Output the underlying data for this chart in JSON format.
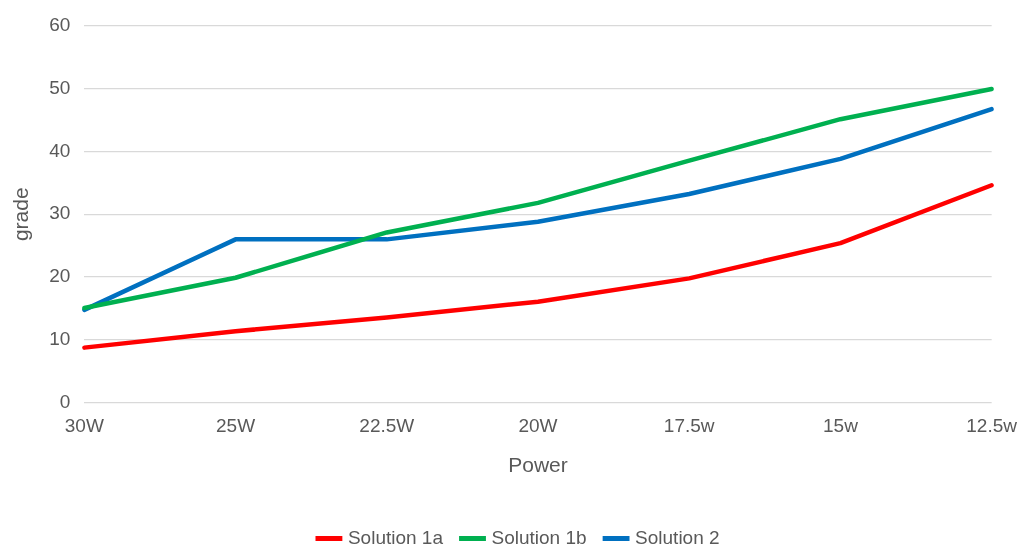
{
  "chart_data": {
    "type": "line",
    "xlabel": "Power",
    "ylabel": "grade",
    "categories": [
      "30W",
      "25W",
      "22.5W",
      "20W",
      "17.5w",
      "15w",
      "12.5w"
    ],
    "series": [
      {
        "name": "Solution 1a",
        "color": "#ff0000",
        "values": [
          8.8,
          11.4,
          13.6,
          16.1,
          19.8,
          25.4,
          34.6
        ]
      },
      {
        "name": "Solution 1b",
        "color": "#00b050",
        "values": [
          15.1,
          19.9,
          27.1,
          31.8,
          38.5,
          45.1,
          49.9
        ]
      },
      {
        "name": "Solution 2",
        "color": "#0070c0",
        "values": [
          14.8,
          26.0,
          26.0,
          28.8,
          33.2,
          38.8,
          46.7
        ]
      }
    ],
    "ylim": [
      0,
      60
    ],
    "yticks": [
      0,
      10,
      20,
      30,
      40,
      50,
      60
    ],
    "grid": "y",
    "legend": "bottom",
    "marker": "none",
    "line_style": "solid"
  }
}
